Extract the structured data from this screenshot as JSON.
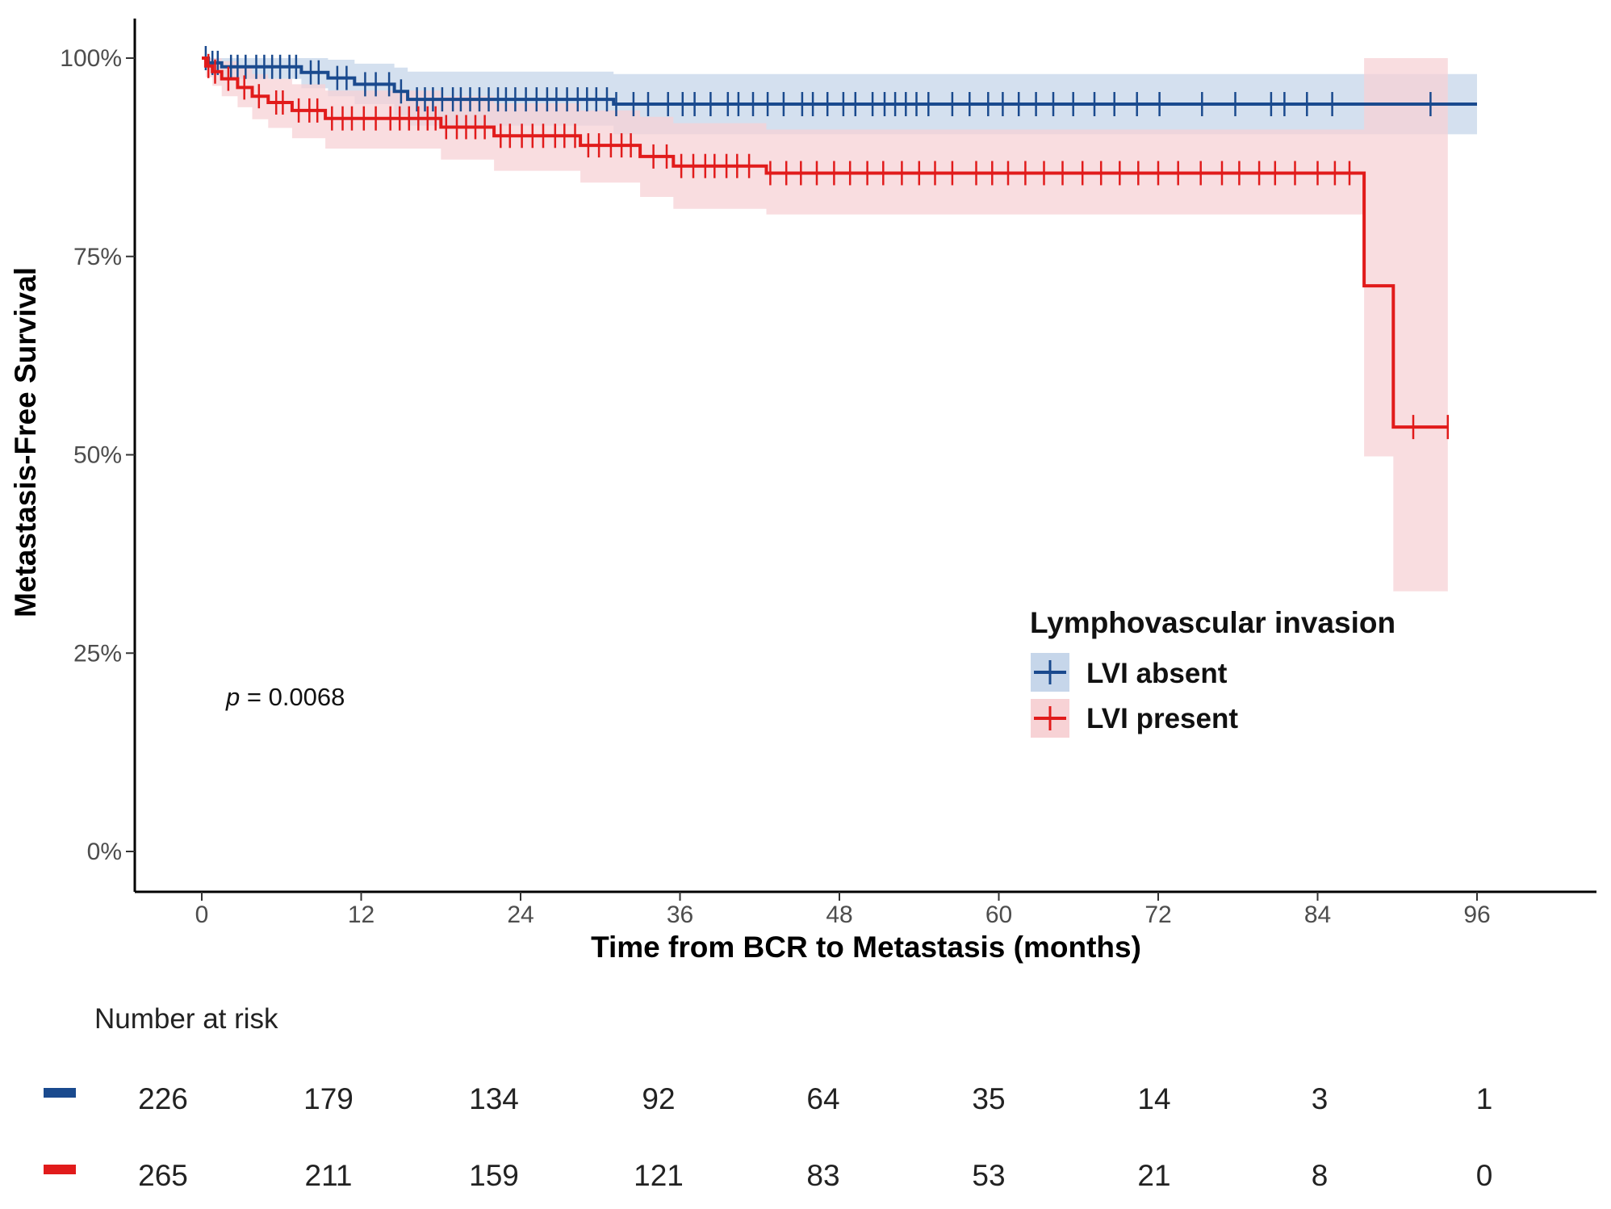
{
  "chart_data": {
    "type": "line",
    "subtype": "kaplan-meier",
    "xlabel": "Time from BCR to Metastasis (months)",
    "ylabel": "Metastasis-Free Survival",
    "x_ticks": [
      "0",
      "12",
      "24",
      "36",
      "48",
      "60",
      "72",
      "84",
      "96"
    ],
    "y_ticks": [
      "0%",
      "25%",
      "50%",
      "75%",
      "100%"
    ],
    "xlim": [
      -5,
      105
    ],
    "ylim": [
      -5,
      105
    ],
    "grid": false,
    "legend": {
      "title": "Lymphovascular invasion",
      "position": "center-right"
    },
    "p_value": {
      "label": "p",
      "text": " = 0.0068"
    },
    "series": [
      {
        "name": "LVI absent",
        "color": "#1a4a8e",
        "band_color": "#c6d6ea",
        "steps": [
          [
            0,
            100
          ],
          [
            0.5,
            99.4
          ],
          [
            1.5,
            98.9
          ],
          [
            7.5,
            98.2
          ],
          [
            9.5,
            97.5
          ],
          [
            11.5,
            96.7
          ],
          [
            14.5,
            95.8
          ],
          [
            15.5,
            94.8
          ],
          [
            31,
            94.2
          ],
          [
            96,
            94.2
          ]
        ],
        "lower": [
          [
            0,
            100
          ],
          [
            0.5,
            98.6
          ],
          [
            1.5,
            97.4
          ],
          [
            7.5,
            96.2
          ],
          [
            9.5,
            95.2
          ],
          [
            11.5,
            94.2
          ],
          [
            14.5,
            92.8
          ],
          [
            15.5,
            91.5
          ],
          [
            31,
            90.4
          ],
          [
            42,
            90.4
          ],
          [
            96,
            90.4
          ]
        ],
        "upper": [
          [
            0,
            100
          ],
          [
            0.5,
            100
          ],
          [
            1.5,
            100
          ],
          [
            7.5,
            100
          ],
          [
            9.5,
            99.8
          ],
          [
            11.5,
            99.3
          ],
          [
            14.5,
            98.8
          ],
          [
            15.5,
            98.3
          ],
          [
            31,
            98
          ],
          [
            96,
            98
          ]
        ],
        "censor_times": [
          0.3,
          0.8,
          1.2,
          2.2,
          2.7,
          3.3,
          4.1,
          4.7,
          5.3,
          5.9,
          6.6,
          7.1,
          8.2,
          8.8,
          10.2,
          10.9,
          12.3,
          13.1,
          14.1,
          15,
          16.2,
          16.8,
          17.4,
          18.1,
          18.9,
          19.5,
          20.2,
          20.9,
          21.6,
          22.3,
          22.9,
          23.6,
          24.4,
          25.2,
          26,
          26.7,
          27.5,
          28.3,
          29,
          29.7,
          30.5,
          31.2,
          32.5,
          33.6,
          35.1,
          36.2,
          37.1,
          38.3,
          39.6,
          40.4,
          41.5,
          42.6,
          43.8,
          45.2,
          46,
          47.1,
          48.3,
          49.2,
          50.5,
          51.4,
          52.2,
          53,
          53.8,
          54.7,
          56.5,
          57.8,
          59.2,
          60.3,
          61.5,
          62.8,
          64.1,
          65.6,
          67.2,
          68.7,
          70.4,
          72.1,
          75.3,
          77.8,
          80.5,
          81.5,
          83.2,
          85.1,
          92.5
        ]
      },
      {
        "name": "LVI present",
        "color": "#e11b1b",
        "band_color": "#f7d2d5",
        "steps": [
          [
            0,
            100
          ],
          [
            0.3,
            99
          ],
          [
            0.8,
            98.3
          ],
          [
            1.5,
            97.4
          ],
          [
            2.7,
            96.3
          ],
          [
            3.8,
            95.2
          ],
          [
            5,
            94.4
          ],
          [
            6.8,
            93.4
          ],
          [
            9.3,
            92.4
          ],
          [
            18,
            91.3
          ],
          [
            22,
            90.2
          ],
          [
            28.5,
            89
          ],
          [
            33,
            87.6
          ],
          [
            35.5,
            86.4
          ],
          [
            42.5,
            85.5
          ],
          [
            87.5,
            71.3
          ],
          [
            89.7,
            53.5
          ],
          [
            93.8,
            53.5
          ]
        ],
        "lower": [
          [
            0,
            100
          ],
          [
            0.3,
            97.6
          ],
          [
            0.8,
            96.5
          ],
          [
            1.5,
            95.2
          ],
          [
            2.7,
            93.8
          ],
          [
            3.8,
            92.3
          ],
          [
            5,
            91.2
          ],
          [
            6.8,
            89.9
          ],
          [
            9.3,
            88.6
          ],
          [
            18,
            87.2
          ],
          [
            22,
            85.8
          ],
          [
            28.5,
            84.3
          ],
          [
            33,
            82.5
          ],
          [
            35.5,
            81
          ],
          [
            42.5,
            80.3
          ],
          [
            87.5,
            49.8
          ],
          [
            89.7,
            32.8
          ],
          [
            93.8,
            32.8
          ]
        ],
        "upper": [
          [
            0,
            100
          ],
          [
            0.3,
            100
          ],
          [
            0.8,
            100
          ],
          [
            1.5,
            99.6
          ],
          [
            2.7,
            98.8
          ],
          [
            3.8,
            98
          ],
          [
            5,
            97.4
          ],
          [
            6.8,
            96.7
          ],
          [
            9.3,
            95.9
          ],
          [
            18,
            95.2
          ],
          [
            22,
            94.3
          ],
          [
            28.5,
            93.4
          ],
          [
            33,
            92.6
          ],
          [
            35.5,
            91.8
          ],
          [
            42.5,
            91
          ],
          [
            87.5,
            100
          ],
          [
            93.8,
            100
          ]
        ],
        "censor_times": [
          0.5,
          1,
          2,
          3.2,
          4.3,
          5.6,
          6.1,
          7.3,
          8.1,
          8.7,
          9.8,
          10.6,
          11.3,
          12.2,
          13.1,
          14.2,
          14.9,
          15.6,
          16.3,
          17,
          17.6,
          18.4,
          19.2,
          19.9,
          20.6,
          21.3,
          22.5,
          23.2,
          24.1,
          24.9,
          25.7,
          26.6,
          27.3,
          28.1,
          29.1,
          29.9,
          30.8,
          31.6,
          32.3,
          34,
          35,
          36.1,
          37,
          37.9,
          38.6,
          39.5,
          40.3,
          41.2,
          42.8,
          44,
          45.1,
          46.3,
          47.6,
          48.8,
          50.1,
          51.3,
          52.7,
          54,
          55.2,
          56.5,
          58.3,
          59.5,
          60.7,
          62,
          63.4,
          64.8,
          66.3,
          67.7,
          69.1,
          70.5,
          72,
          73.5,
          75.2,
          76.8,
          78.1,
          79.6,
          80.8,
          82.3,
          84,
          85.3,
          86.4,
          91.2,
          93.8
        ]
      }
    ]
  },
  "risk_table": {
    "title": "Number at risk",
    "rows": [
      {
        "color": "#1a4a8e",
        "values": [
          "226",
          "179",
          "134",
          "92",
          "64",
          "35",
          "14",
          "3",
          "1"
        ]
      },
      {
        "color": "#e11b1b",
        "values": [
          "265",
          "211",
          "159",
          "121",
          "83",
          "53",
          "21",
          "8",
          "0"
        ]
      }
    ]
  }
}
